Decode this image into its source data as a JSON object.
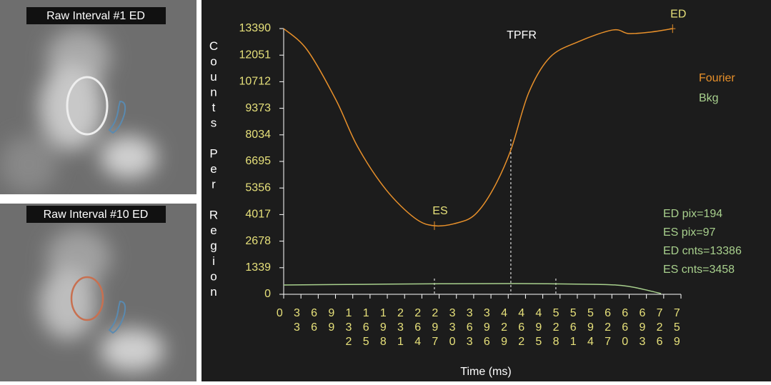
{
  "panels": [
    {
      "label": "Raw Interval #1 ED"
    },
    {
      "label": "Raw Interval #10 ED"
    }
  ],
  "chart_data": {
    "type": "line",
    "title": "TPFR",
    "x_label": "Time (ms)",
    "y_label": "Counts Per Region",
    "xlim": [
      0,
      759
    ],
    "xticks": [
      0,
      33,
      66,
      99,
      132,
      165,
      198,
      231,
      264,
      297,
      330,
      363,
      396,
      429,
      462,
      495,
      528,
      561,
      594,
      627,
      660,
      693,
      726,
      759
    ],
    "ylim": [
      0,
      13390
    ],
    "yticks": [
      0,
      1339,
      2678,
      4017,
      5356,
      6695,
      8034,
      9373,
      10712,
      12051,
      13390
    ],
    "series": [
      {
        "name": "Fourier",
        "color": "#e8902a",
        "x": [
          0,
          45,
          100,
          141,
          195,
          250,
          288,
          332,
          366,
          400,
          434,
          468,
          509,
          564,
          629,
          659,
          700,
          743
        ],
        "values": [
          13390,
          12310,
          9790,
          7450,
          5290,
          3850,
          3455,
          3600,
          4030,
          5290,
          7270,
          10150,
          11950,
          12740,
          13320,
          13140,
          13210,
          13386
        ]
      },
      {
        "name": "Bkg",
        "color": "#a8d08d",
        "x": [
          0,
          150,
          300,
          450,
          600,
          653,
          687,
          721
        ],
        "values": [
          470,
          500,
          530,
          540,
          500,
          420,
          250,
          36
        ]
      }
    ],
    "markers": [
      {
        "label": "ES",
        "x": 288,
        "y": 3458
      },
      {
        "label": "ED",
        "x": 743,
        "y": 13386
      }
    ],
    "vlines": [
      288,
      434,
      520
    ],
    "stats": [
      "ED pix=194",
      "ES pix=97",
      "ED cnts=13386",
      "ES cnts=3458"
    ]
  }
}
